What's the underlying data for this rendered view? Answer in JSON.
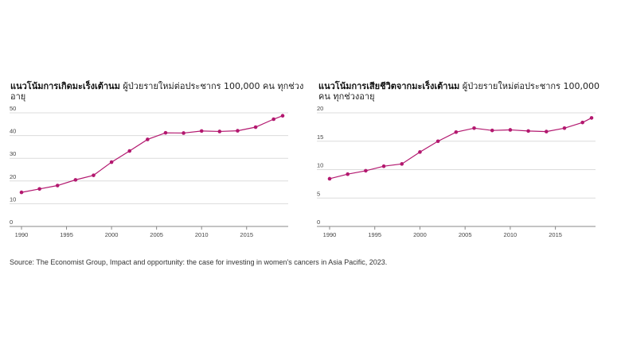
{
  "colors": {
    "line": "#b3186f",
    "grid": "#dcdcdc",
    "axis": "#888888"
  },
  "chart_data": [
    {
      "type": "line",
      "title": "แนวโน้มการเกิดมะเร็งเต้านม",
      "subtitle": "ผู้ป่วยรายใหม่ต่อประชากร 100,000 คน ทุกช่วงอายุ",
      "x": [
        1990,
        1992,
        1994,
        1996,
        1998,
        2000,
        2002,
        2004,
        2006,
        2008,
        2010,
        2012,
        2014,
        2016,
        2018,
        2019
      ],
      "values": [
        15,
        16.5,
        18,
        20.5,
        22.5,
        28.3,
        33.2,
        38.3,
        41.2,
        41.1,
        42,
        41.8,
        42.1,
        43.7,
        47.2,
        48.7
      ],
      "yticks": [
        "0",
        "10",
        "20",
        "30",
        "40",
        "50"
      ],
      "xticks": [
        "1990",
        "1995",
        "2000",
        "2005",
        "2010",
        "2015"
      ],
      "ylim": [
        0,
        50
      ],
      "xlim": [
        1990,
        2019
      ]
    },
    {
      "type": "line",
      "title": "แนวโน้มการเสียชีวิตจากมะเร็งเต้านม",
      "subtitle": "ผู้ป่วยรายใหม่ต่อประชากร 100,000 คน ทุกช่วงอายุ",
      "x": [
        1990,
        1992,
        1994,
        1996,
        1998,
        2000,
        2002,
        2004,
        2006,
        2008,
        2010,
        2012,
        2014,
        2016,
        2018,
        2019
      ],
      "values": [
        8.4,
        9.2,
        9.8,
        10.6,
        11,
        13.1,
        15,
        16.6,
        17.3,
        16.9,
        17,
        16.8,
        16.7,
        17.3,
        18.3,
        19.1
      ],
      "yticks": [
        "0",
        "5",
        "10",
        "15",
        "20"
      ],
      "xticks": [
        "1990",
        "1995",
        "2000",
        "2005",
        "2010",
        "2015"
      ],
      "ylim": [
        0,
        20
      ],
      "xlim": [
        1990,
        2019
      ]
    }
  ],
  "source": "Source: The Economist Group, Impact and opportunity: the case for investing in women's cancers in Asia Pacific, 2023."
}
